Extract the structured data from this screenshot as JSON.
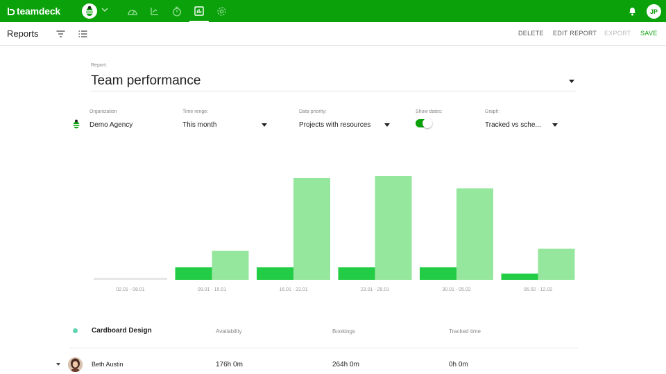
{
  "app": {
    "logo_text": "teamdeck",
    "user_initials": "JP"
  },
  "nav": [
    {
      "name": "dashboard-icon"
    },
    {
      "name": "planner-icon"
    },
    {
      "name": "timer-icon"
    },
    {
      "name": "reports-icon",
      "active": true
    },
    {
      "name": "settings-icon"
    }
  ],
  "subheader": {
    "title": "Reports",
    "actions": {
      "delete": "DELETE",
      "edit": "EDIT REPORT",
      "export": "EXPORT",
      "save": "SAVE"
    }
  },
  "report": {
    "label": "Report:",
    "name": "Team performance"
  },
  "filters": {
    "organization": {
      "label": "Organization",
      "value": "Demo Agency"
    },
    "time_range": {
      "label": "Time renge:",
      "value": "This month"
    },
    "data_priority": {
      "label": "Data priority:",
      "value": "Projects with resources"
    },
    "show_dates": {
      "label": "Show dates:",
      "on": true
    },
    "graph": {
      "label": "Graph:",
      "value": "Tracked vs sche..."
    }
  },
  "colors": {
    "brand": "#0aa10a",
    "tracked": "#22cc44",
    "scheduled": "#96e79e",
    "baseline": "#e6e6e6",
    "group_dot": "#5fd3b0"
  },
  "chart_data": {
    "type": "bar",
    "categories": [
      "02.01 - 08.01",
      "09.01 - 15.01",
      "16.01 - 22.01",
      "23.01 - 29.01",
      "30.01 - 05.02",
      "06.02 - 12.02"
    ],
    "series": [
      {
        "values": [
          0,
          18,
          18,
          18,
          18,
          9
        ]
      },
      {
        "values": [
          0,
          42,
          147,
          150,
          132,
          45
        ]
      }
    ],
    "ylim": [
      0,
      160
    ],
    "grid": false,
    "title": "",
    "xlabel": "",
    "ylabel": ""
  },
  "table": {
    "group": "Cardboard Design",
    "columns": [
      "Availability",
      "Bookings",
      "Tracked time"
    ],
    "rows": [
      {
        "name": "Beth Austin",
        "availability": "176h 0m",
        "bookings": "264h 0m",
        "tracked": "0h 0m"
      }
    ]
  }
}
